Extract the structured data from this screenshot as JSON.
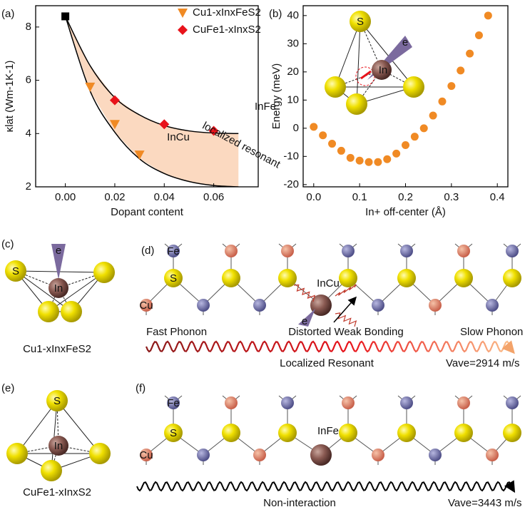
{
  "chart_data": [
    {
      "type": "scatter",
      "panel": "(a)",
      "xlabel": "Dopant content",
      "ylabel": "κlat (Wm-1K-1)",
      "xlim": [
        -0.012,
        0.078
      ],
      "ylim": [
        2,
        8.8
      ],
      "xticks": [
        {
          "value": 0,
          "label": "0.00"
        },
        0.02,
        0.04,
        0.06
      ],
      "yticks": [
        2,
        4,
        6,
        8
      ],
      "band_color": "#fbd9c0",
      "legend": "upper right",
      "series": [
        {
          "marker": "square",
          "color": "#000000",
          "x": [
            0
          ],
          "values": [
            8.4
          ]
        },
        {
          "name": "Cu1-xInxFeS2",
          "marker": "triangle",
          "color": "#f08a24",
          "x": [
            0.01,
            0.02,
            0.03
          ],
          "values": [
            5.75,
            4.35,
            3.2
          ]
        },
        {
          "name": "CuFe1-xInxS2",
          "marker": "diamond",
          "color": "#e8131b",
          "x": [
            0.02,
            0.04,
            0.06
          ],
          "values": [
            5.25,
            4.35,
            4.1
          ]
        },
        {
          "marker": "line",
          "color": "#000000",
          "x": [
            0,
            0.01,
            0.02,
            0.03,
            0.04,
            0.05,
            0.06,
            0.07
          ],
          "values": [
            8.4,
            6.55,
            5.35,
            4.7,
            4.3,
            4.1,
            4.02,
            4.0
          ]
        },
        {
          "marker": "line",
          "color": "#000000",
          "x": [
            0,
            0.01,
            0.02,
            0.03,
            0.04,
            0.05,
            0.06,
            0.07
          ],
          "values": [
            8.4,
            5.6,
            4.05,
            3.05,
            2.5,
            2.2,
            2.05,
            2.0
          ]
        }
      ],
      "annotations": [
        {
          "text": "InFe",
          "color": "#e8131b"
        },
        {
          "text": "InCu",
          "color": "#f08a24"
        },
        {
          "text": "localized resonant",
          "color": "#000000"
        }
      ]
    },
    {
      "type": "scatter",
      "panel": "(b)",
      "xlabel": "In+ off-center (Å)",
      "ylabel": "Energy (meV)",
      "xlim": [
        -0.023,
        0.423
      ],
      "ylim": [
        -20.8,
        43.5
      ],
      "xticks": [
        {
          "value": 0,
          "label": "0.0"
        },
        0.1,
        0.2,
        0.3,
        0.4
      ],
      "yticks": [
        -20,
        -10,
        0,
        10,
        20,
        30,
        40
      ],
      "series": [
        {
          "marker": "circle",
          "color": "#f08a24",
          "x": [
            0,
            0.02,
            0.04,
            0.06,
            0.08,
            0.1,
            0.12,
            0.14,
            0.16,
            0.18,
            0.2,
            0.22,
            0.24,
            0.26,
            0.28,
            0.3,
            0.32,
            0.34,
            0.36,
            0.38
          ],
          "values": [
            0.5,
            -2.5,
            -5.5,
            -8,
            -10.5,
            -11.5,
            -12,
            -12,
            -11,
            -9,
            -6,
            -3,
            0,
            4.5,
            9.5,
            15,
            20.5,
            26.5,
            33,
            40
          ]
        }
      ],
      "inset_labels": [
        "S",
        "In",
        "e"
      ]
    }
  ],
  "diagrams": {
    "c": {
      "panel": "(c)",
      "labels": [
        "S",
        "e",
        "In"
      ],
      "caption": "Cu1-xInxFeS2"
    },
    "d": {
      "panel": "(d)",
      "atoms": [
        "Fe",
        "S",
        "Cu"
      ],
      "dopant": "InCu",
      "electron": "e",
      "texts": [
        "Fast Phonon",
        "Distorted Weak Bonding",
        "Slow Phonon",
        "Localized Resonant",
        "Vave=2914 m/s"
      ]
    },
    "e": {
      "panel": "(e)",
      "labels": [
        "S",
        "In"
      ],
      "caption": "CuFe1-xInxS2"
    },
    "f": {
      "panel": "(f)",
      "atoms": [
        "Fe",
        "S",
        "Cu"
      ],
      "dopant": "InFe",
      "texts": [
        "Non-interaction",
        "Vave=3443 m/s"
      ]
    }
  }
}
